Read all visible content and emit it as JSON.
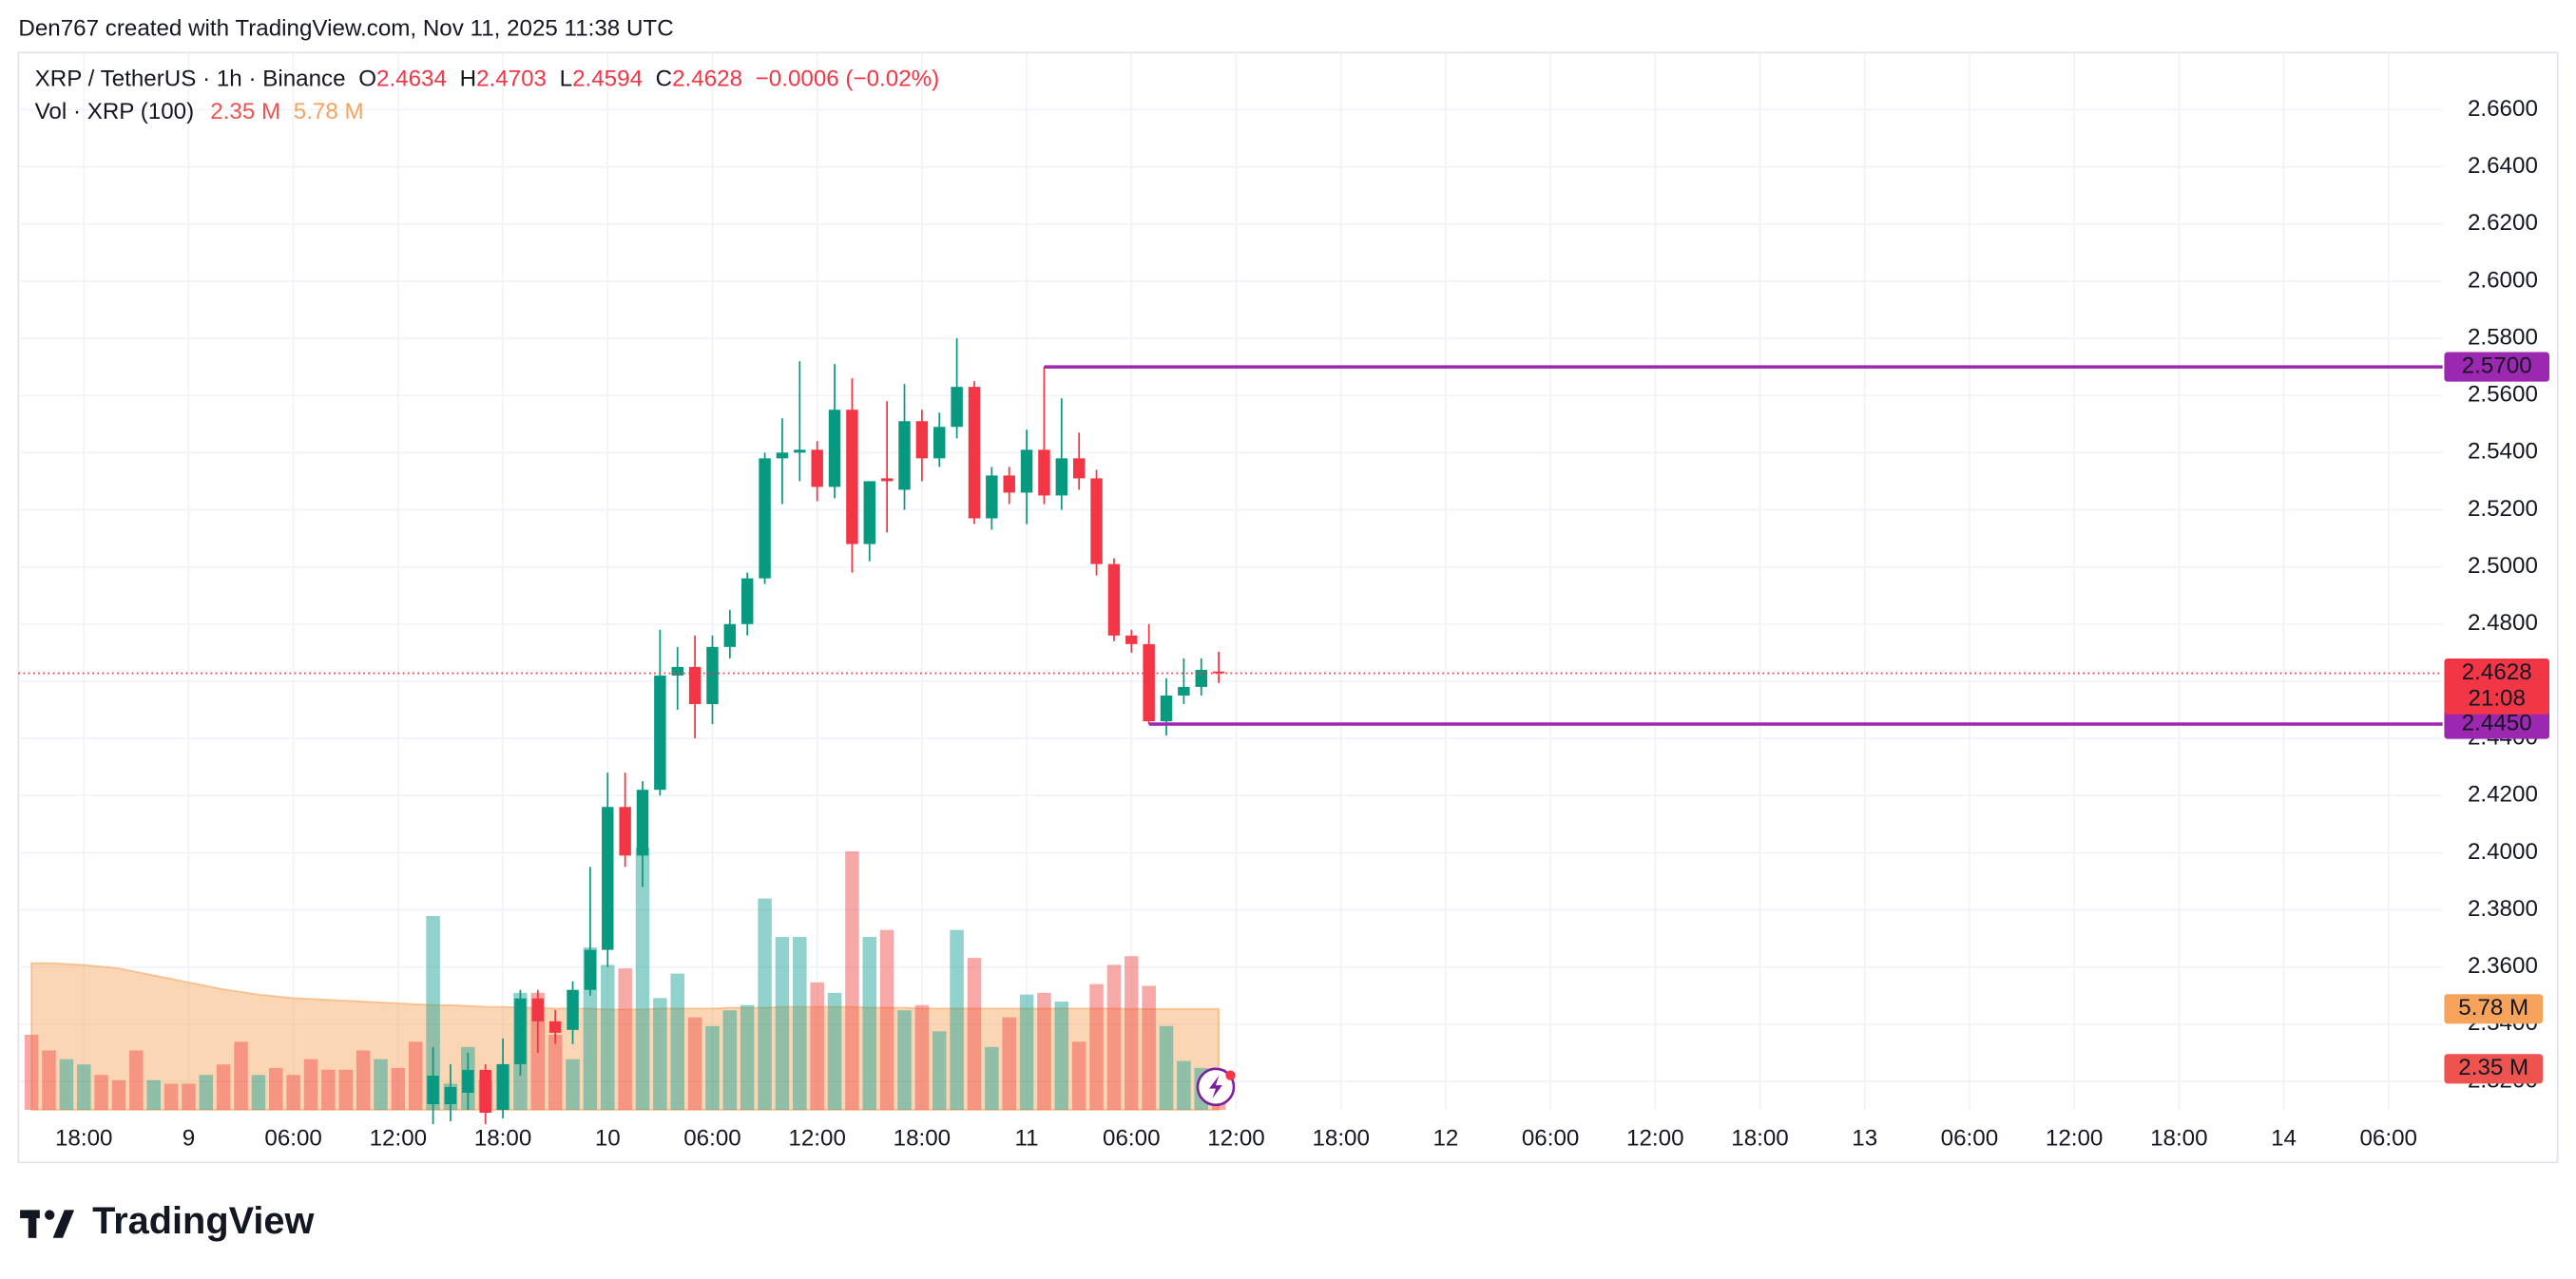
{
  "header": {
    "credit": "Den767 created with TradingView.com, Nov 11, 2025 11:38 UTC",
    "logo": "TradingView"
  },
  "chart_data": {
    "type": "candlestick",
    "symbol": "XRP / TetherUS · 1h · Binance",
    "ohlc_letters": [
      "O",
      "H",
      "L",
      "C"
    ],
    "change": "−0.0006 (−0.02%)",
    "volume_legend": "Vol · XRP (100)",
    "up_color": "#089981",
    "down_color": "#f23645",
    "xlim": [
      -0.75,
      138.1
    ],
    "xticks": [
      {
        "value": 3,
        "label": "18:00"
      },
      {
        "value": 9,
        "label": "9"
      },
      {
        "value": 15,
        "label": "06:00"
      },
      {
        "value": 21,
        "label": "12:00"
      },
      {
        "value": 27,
        "label": "18:00"
      },
      {
        "value": 33,
        "label": "10"
      },
      {
        "value": 39,
        "label": "06:00"
      },
      {
        "value": 45,
        "label": "12:00"
      },
      {
        "value": 51,
        "label": "18:00"
      },
      {
        "value": 57,
        "label": "11"
      },
      {
        "value": 63,
        "label": "06:00"
      },
      {
        "value": 69,
        "label": "12:00"
      },
      {
        "value": 75,
        "label": "18:00"
      },
      {
        "value": 81,
        "label": "12"
      },
      {
        "value": 87,
        "label": "06:00"
      },
      {
        "value": 93,
        "label": "12:00"
      },
      {
        "value": 99,
        "label": "18:00"
      },
      {
        "value": 105,
        "label": "13"
      },
      {
        "value": 111,
        "label": "06:00"
      },
      {
        "value": 117,
        "label": "12:00"
      },
      {
        "value": 123,
        "label": "18:00"
      },
      {
        "value": 129,
        "label": "14"
      },
      {
        "value": 135,
        "label": "06:00"
      }
    ],
    "ylim": [
      2.31,
      2.68
    ],
    "yticks": [
      {
        "value": 2.32,
        "label": "2.3200"
      },
      {
        "value": 2.34,
        "label": "2.3400"
      },
      {
        "value": 2.36,
        "label": "2.3600"
      },
      {
        "value": 2.38,
        "label": "2.3800"
      },
      {
        "value": 2.4,
        "label": "2.4000"
      },
      {
        "value": 2.42,
        "label": "2.4200"
      },
      {
        "value": 2.44,
        "label": "2.4400"
      },
      {
        "value": 2.46,
        "label": "2.4600"
      },
      {
        "value": 2.48,
        "label": "2.4800"
      },
      {
        "value": 2.5,
        "label": "2.5000"
      },
      {
        "value": 2.52,
        "label": "2.5200"
      },
      {
        "value": 2.54,
        "label": "2.5400"
      },
      {
        "value": 2.56,
        "label": "2.5600"
      },
      {
        "value": 2.58,
        "label": "2.5800"
      },
      {
        "value": 2.6,
        "label": "2.6000"
      },
      {
        "value": 2.62,
        "label": "2.6200"
      },
      {
        "value": 2.64,
        "label": "2.6400"
      },
      {
        "value": 2.66,
        "label": "2.6600"
      }
    ],
    "grid": true,
    "candles": {
      "x": [
        23,
        24,
        25,
        26,
        27,
        28,
        29,
        30,
        31,
        32,
        33,
        34,
        35,
        36,
        37,
        38,
        39,
        40,
        41,
        42,
        43,
        44,
        45,
        46,
        47,
        48,
        49,
        50,
        51,
        52,
        53,
        54,
        55,
        56,
        57,
        58,
        59,
        60,
        61,
        62,
        63,
        64,
        65,
        66,
        67,
        68
      ],
      "open": [
        2.312,
        2.312,
        2.316,
        2.324,
        2.31,
        2.326,
        2.349,
        2.341,
        2.338,
        2.352,
        2.366,
        2.416,
        2.399,
        2.422,
        2.462,
        2.465,
        2.452,
        2.472,
        2.48,
        2.496,
        2.538,
        2.54,
        2.541,
        2.528,
        2.555,
        2.508,
        2.531,
        2.527,
        2.551,
        2.538,
        2.549,
        2.563,
        2.517,
        2.532,
        2.526,
        2.541,
        2.525,
        2.538,
        2.531,
        2.501,
        2.476,
        2.473,
        2.446,
        2.455,
        2.458,
        2.4634
      ],
      "high": [
        2.332,
        2.326,
        2.33,
        2.326,
        2.335,
        2.352,
        2.352,
        2.345,
        2.355,
        2.395,
        2.428,
        2.428,
        2.425,
        2.478,
        2.472,
        2.476,
        2.476,
        2.485,
        2.498,
        2.54,
        2.552,
        2.572,
        2.544,
        2.571,
        2.566,
        2.53,
        2.558,
        2.564,
        2.555,
        2.554,
        2.58,
        2.565,
        2.535,
        2.535,
        2.548,
        2.57,
        2.559,
        2.547,
        2.534,
        2.503,
        2.478,
        2.48,
        2.461,
        2.468,
        2.468,
        2.4703
      ],
      "low": [
        2.305,
        2.306,
        2.31,
        2.305,
        2.307,
        2.322,
        2.33,
        2.333,
        2.333,
        2.35,
        2.36,
        2.395,
        2.388,
        2.42,
        2.45,
        2.44,
        2.445,
        2.468,
        2.476,
        2.494,
        2.522,
        2.53,
        2.523,
        2.524,
        2.498,
        2.502,
        2.512,
        2.52,
        2.53,
        2.535,
        2.545,
        2.515,
        2.513,
        2.522,
        2.515,
        2.522,
        2.52,
        2.527,
        2.497,
        2.474,
        2.47,
        2.445,
        2.441,
        2.452,
        2.455,
        2.4594
      ],
      "close": [
        2.322,
        2.318,
        2.324,
        2.309,
        2.326,
        2.349,
        2.341,
        2.337,
        2.352,
        2.366,
        2.416,
        2.399,
        2.422,
        2.462,
        2.465,
        2.452,
        2.472,
        2.48,
        2.496,
        2.538,
        2.54,
        2.541,
        2.528,
        2.555,
        2.508,
        2.53,
        2.53,
        2.551,
        2.538,
        2.549,
        2.563,
        2.517,
        2.532,
        2.526,
        2.541,
        2.525,
        2.538,
        2.531,
        2.501,
        2.476,
        2.473,
        2.446,
        2.455,
        2.458,
        2.464,
        2.4628
      ]
    },
    "countdown": "21:08",
    "price_line_color": "#f23645",
    "levels": [
      {
        "value": 2.57,
        "label": "2.5700",
        "start": 58
      },
      {
        "value": 2.445,
        "label": "2.4450",
        "start": 64
      }
    ],
    "level_color": "#9c27b0",
    "volume": {
      "values": [
        4.3,
        3.4,
        2.9,
        2.6,
        2.0,
        1.7,
        3.4,
        1.7,
        1.5,
        1.5,
        2.0,
        2.6,
        3.9,
        2.0,
        2.4,
        2.0,
        2.9,
        2.3,
        2.3,
        3.4,
        2.9,
        2.4,
        3.9,
        11.1,
        1.5,
        3.6,
        1.7,
        2.6,
        6.7,
        6.7,
        4.3,
        2.9,
        9.3,
        8.3,
        8.1,
        15.0,
        6.4,
        7.8,
        5.3,
        4.8,
        5.7,
        6.0,
        12.1,
        9.9,
        9.9,
        7.3,
        6.7,
        14.8,
        9.9,
        10.3,
        5.7,
        6.0,
        4.5,
        10.3,
        8.7,
        3.6,
        5.3,
        6.6,
        6.7,
        6.2,
        3.9,
        7.2,
        8.3,
        8.8,
        7.1,
        4.8,
        2.8,
        2.4,
        2.35
      ],
      "colors": [
        "#ef5350",
        "#ef5350",
        "#26a69a",
        "#26a69a",
        "#ef5350",
        "#ef5350",
        "#ef5350",
        "#26a69a",
        "#ef5350",
        "#ef5350",
        "#26a69a",
        "#ef5350",
        "#ef5350",
        "#26a69a",
        "#ef5350",
        "#ef5350",
        "#ef5350",
        "#ef5350",
        "#ef5350",
        "#ef5350",
        "#26a69a",
        "#ef5350",
        "#ef5350",
        "#26a69a",
        "#26a69a",
        "#26a69a",
        "#ef5350",
        "#26a69a",
        "#26a69a",
        "#ef5350",
        "#ef5350",
        "#26a69a",
        "#26a69a",
        "#26a69a",
        "#ef5350",
        "#26a69a",
        "#26a69a",
        "#26a69a",
        "#ef5350",
        "#26a69a",
        "#26a69a",
        "#26a69a",
        "#26a69a",
        "#26a69a",
        "#26a69a",
        "#ef5350",
        "#26a69a",
        "#ef5350",
        "#26a69a",
        "#ef5350",
        "#26a69a",
        "#ef5350",
        "#26a69a",
        "#26a69a",
        "#ef5350",
        "#26a69a",
        "#ef5350",
        "#26a69a",
        "#ef5350",
        "#26a69a",
        "#ef5350",
        "#ef5350",
        "#ef5350",
        "#ef5350",
        "#ef5350",
        "#26a69a",
        "#26a69a",
        "#26a69a",
        "#ef5350"
      ],
      "last_label": "2.35 M",
      "label_color": "#ef5350"
    },
    "volume_ma": {
      "values": [
        8.4,
        8.4,
        8.35,
        8.3,
        8.2,
        8.1,
        7.9,
        7.7,
        7.5,
        7.3,
        7.1,
        6.9,
        6.75,
        6.6,
        6.5,
        6.4,
        6.35,
        6.3,
        6.25,
        6.2,
        6.15,
        6.1,
        6.05,
        6.0,
        6.0,
        5.95,
        5.9,
        5.9,
        5.85,
        5.85,
        5.8,
        5.8,
        5.8,
        5.75,
        5.75,
        5.75,
        5.8,
        5.8,
        5.8,
        5.8,
        5.85,
        5.85,
        5.85,
        5.9,
        5.9,
        5.9,
        5.9,
        5.9,
        5.85,
        5.85,
        5.85,
        5.8,
        5.8,
        5.8,
        5.8,
        5.8,
        5.8,
        5.8,
        5.8,
        5.8,
        5.8,
        5.8,
        5.8,
        5.78,
        5.78,
        5.78,
        5.78,
        5.78,
        5.78
      ],
      "color": "#f7a35c",
      "last_label": "5.78 M"
    }
  }
}
